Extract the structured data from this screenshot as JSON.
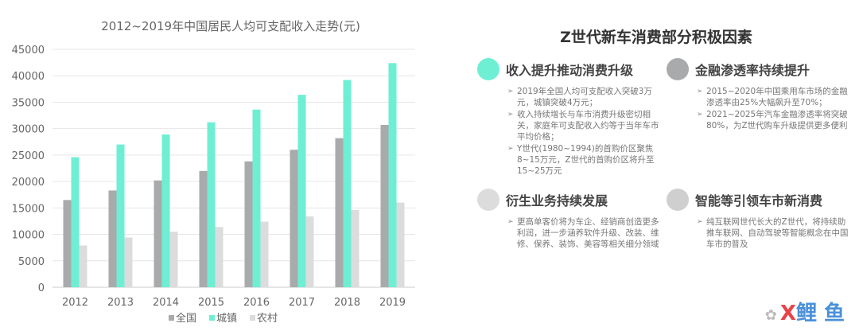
{
  "chart_data": {
    "type": "bar",
    "title": "2012~2019年中国居民人均可支配收入走势(元)",
    "categories": [
      "2012",
      "2013",
      "2014",
      "2015",
      "2016",
      "2017",
      "2018",
      "2019"
    ],
    "series": [
      {
        "name": "全国",
        "color": "#a9aaab",
        "values": [
          16500,
          18300,
          20200,
          22000,
          23800,
          26000,
          28200,
          30700
        ]
      },
      {
        "name": "城镇",
        "color": "#6eefd4",
        "values": [
          24600,
          27000,
          28900,
          31200,
          33600,
          36400,
          39200,
          42400
        ]
      },
      {
        "name": "农村",
        "color": "#dcdcdc",
        "values": [
          7900,
          9400,
          10500,
          11400,
          12400,
          13400,
          14600,
          16000
        ]
      }
    ],
    "ylim": [
      0,
      45000
    ],
    "yticks": [
      0,
      5000,
      10000,
      15000,
      20000,
      25000,
      30000,
      35000,
      40000,
      45000
    ],
    "grid": true,
    "legend": "bottom-center"
  },
  "panel": {
    "title": "Z世代新车消费部分积极因素"
  },
  "factors": [
    {
      "title": "收入提升推动消费升级",
      "color": "#6eefd4",
      "items": [
        "2019年全国人均可支配收入突破3万元，城镇突破4万元；",
        "收入持续增长与车市消费升级密切相关，家庭年可支配收入约等于当年车市平均价格；",
        "Y世代(1980~1994)的首购价区聚焦8~15万元，Z世代的首购价区将升至15~25万元"
      ]
    },
    {
      "title": "金融渗透率持续提升",
      "color": "#a9aaab",
      "items": [
        "2015~2020年中国乘用车市场的金融渗透率由25%大幅飙升至70%；",
        "2021~2025年汽车金融渗透率将突破80%，为Z世代购车升级提供更多便利"
      ]
    },
    {
      "title": "衍生业务持续发展",
      "color": "#dcdcdc",
      "items": [
        "更高单客价将为车企、经销商创造更多利润，进一步涵养软件升级、改装、维修、保养、装饰、美容等相关细分领域"
      ]
    },
    {
      "title": "智能等引领车市新消费",
      "color": "#cfcfcf",
      "items": [
        "纯互联网世代长大的Z世代，将持续助推车联网、自动驾驶等智能概念在中国车市的普及"
      ]
    }
  ],
  "watermark": {
    "icon": "wechat-icon",
    "x": "X",
    "text": "鲤 鱼"
  }
}
